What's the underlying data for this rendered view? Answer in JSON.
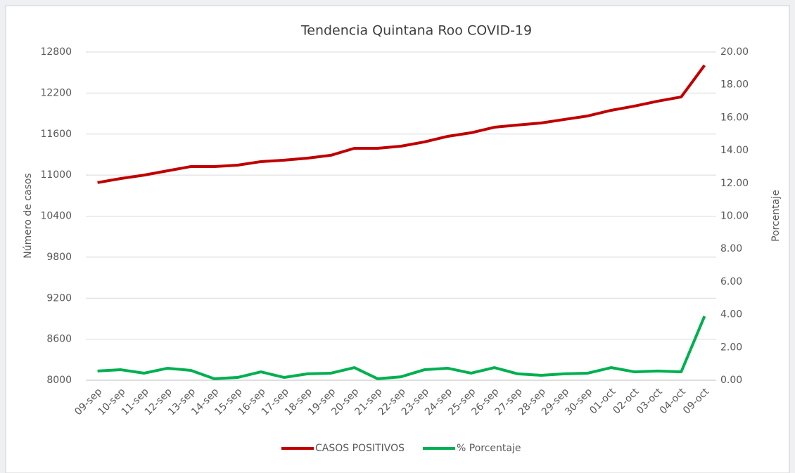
{
  "chart_data": {
    "type": "line",
    "title": "Tendencia  Quintana Roo COVID-19",
    "y_label": "Número de casos",
    "y2_label": "Porcentaje",
    "categories": [
      "09-sep",
      "10-sep",
      "11-sep",
      "12-sep",
      "13-sep",
      "14-sep",
      "15-sep",
      "16-sep",
      "17-sep",
      "18-sep",
      "19-sep",
      "20-sep",
      "21-sep",
      "22-sep",
      "23-sep",
      "24-sep",
      "25-sep",
      "26-sep",
      "27-sep",
      "28-sep",
      "29-sep",
      "30-sep",
      "01-oct",
      "02-oct",
      "03-oct",
      "04-oct",
      "09-oct"
    ],
    "series": [
      {
        "name": "CASOS POSITIVOS",
        "color": "#c00000",
        "values": [
          10890,
          10950,
          11000,
          11063,
          11125,
          11125,
          11145,
          11197,
          11218,
          11248,
          11290,
          11392,
          11392,
          11423,
          11485,
          11567,
          11619,
          11700,
          11732,
          11762,
          11814,
          11865,
          11947,
          12009,
          12081,
          12143,
          12605
        ]
      },
      {
        "name": "% Porcentaje",
        "color": "#00b050",
        "axis": "y2",
        "values": [
          0.56,
          0.64,
          0.43,
          0.73,
          0.6,
          0.09,
          0.17,
          0.51,
          0.17,
          0.39,
          0.43,
          0.77,
          0.09,
          0.21,
          0.64,
          0.73,
          0.43,
          0.77,
          0.39,
          0.3,
          0.39,
          0.43,
          0.77,
          0.51,
          0.56,
          0.51,
          3.9
        ]
      }
    ],
    "ylim": [
      8000,
      12800
    ],
    "yticks": [
      8000,
      8600,
      9200,
      9800,
      10400,
      11000,
      11600,
      12200,
      12800
    ],
    "y2lim": [
      0,
      20
    ],
    "y2ticks": [
      {
        "value": 0,
        "label": "0.00"
      },
      {
        "value": 2,
        "label": "2.00"
      },
      {
        "value": 4,
        "label": "4.00"
      },
      {
        "value": 6,
        "label": "6.00"
      },
      {
        "value": 8,
        "label": "8.00"
      },
      {
        "value": 10,
        "label": "10.00"
      },
      {
        "value": 12,
        "label": "12.00"
      },
      {
        "value": 14,
        "label": "14.00"
      },
      {
        "value": 16,
        "label": "16.00"
      },
      {
        "value": 18,
        "label": "18.00"
      },
      {
        "value": 20,
        "label": "20.00"
      }
    ],
    "grid": true,
    "legend": "bottom"
  }
}
